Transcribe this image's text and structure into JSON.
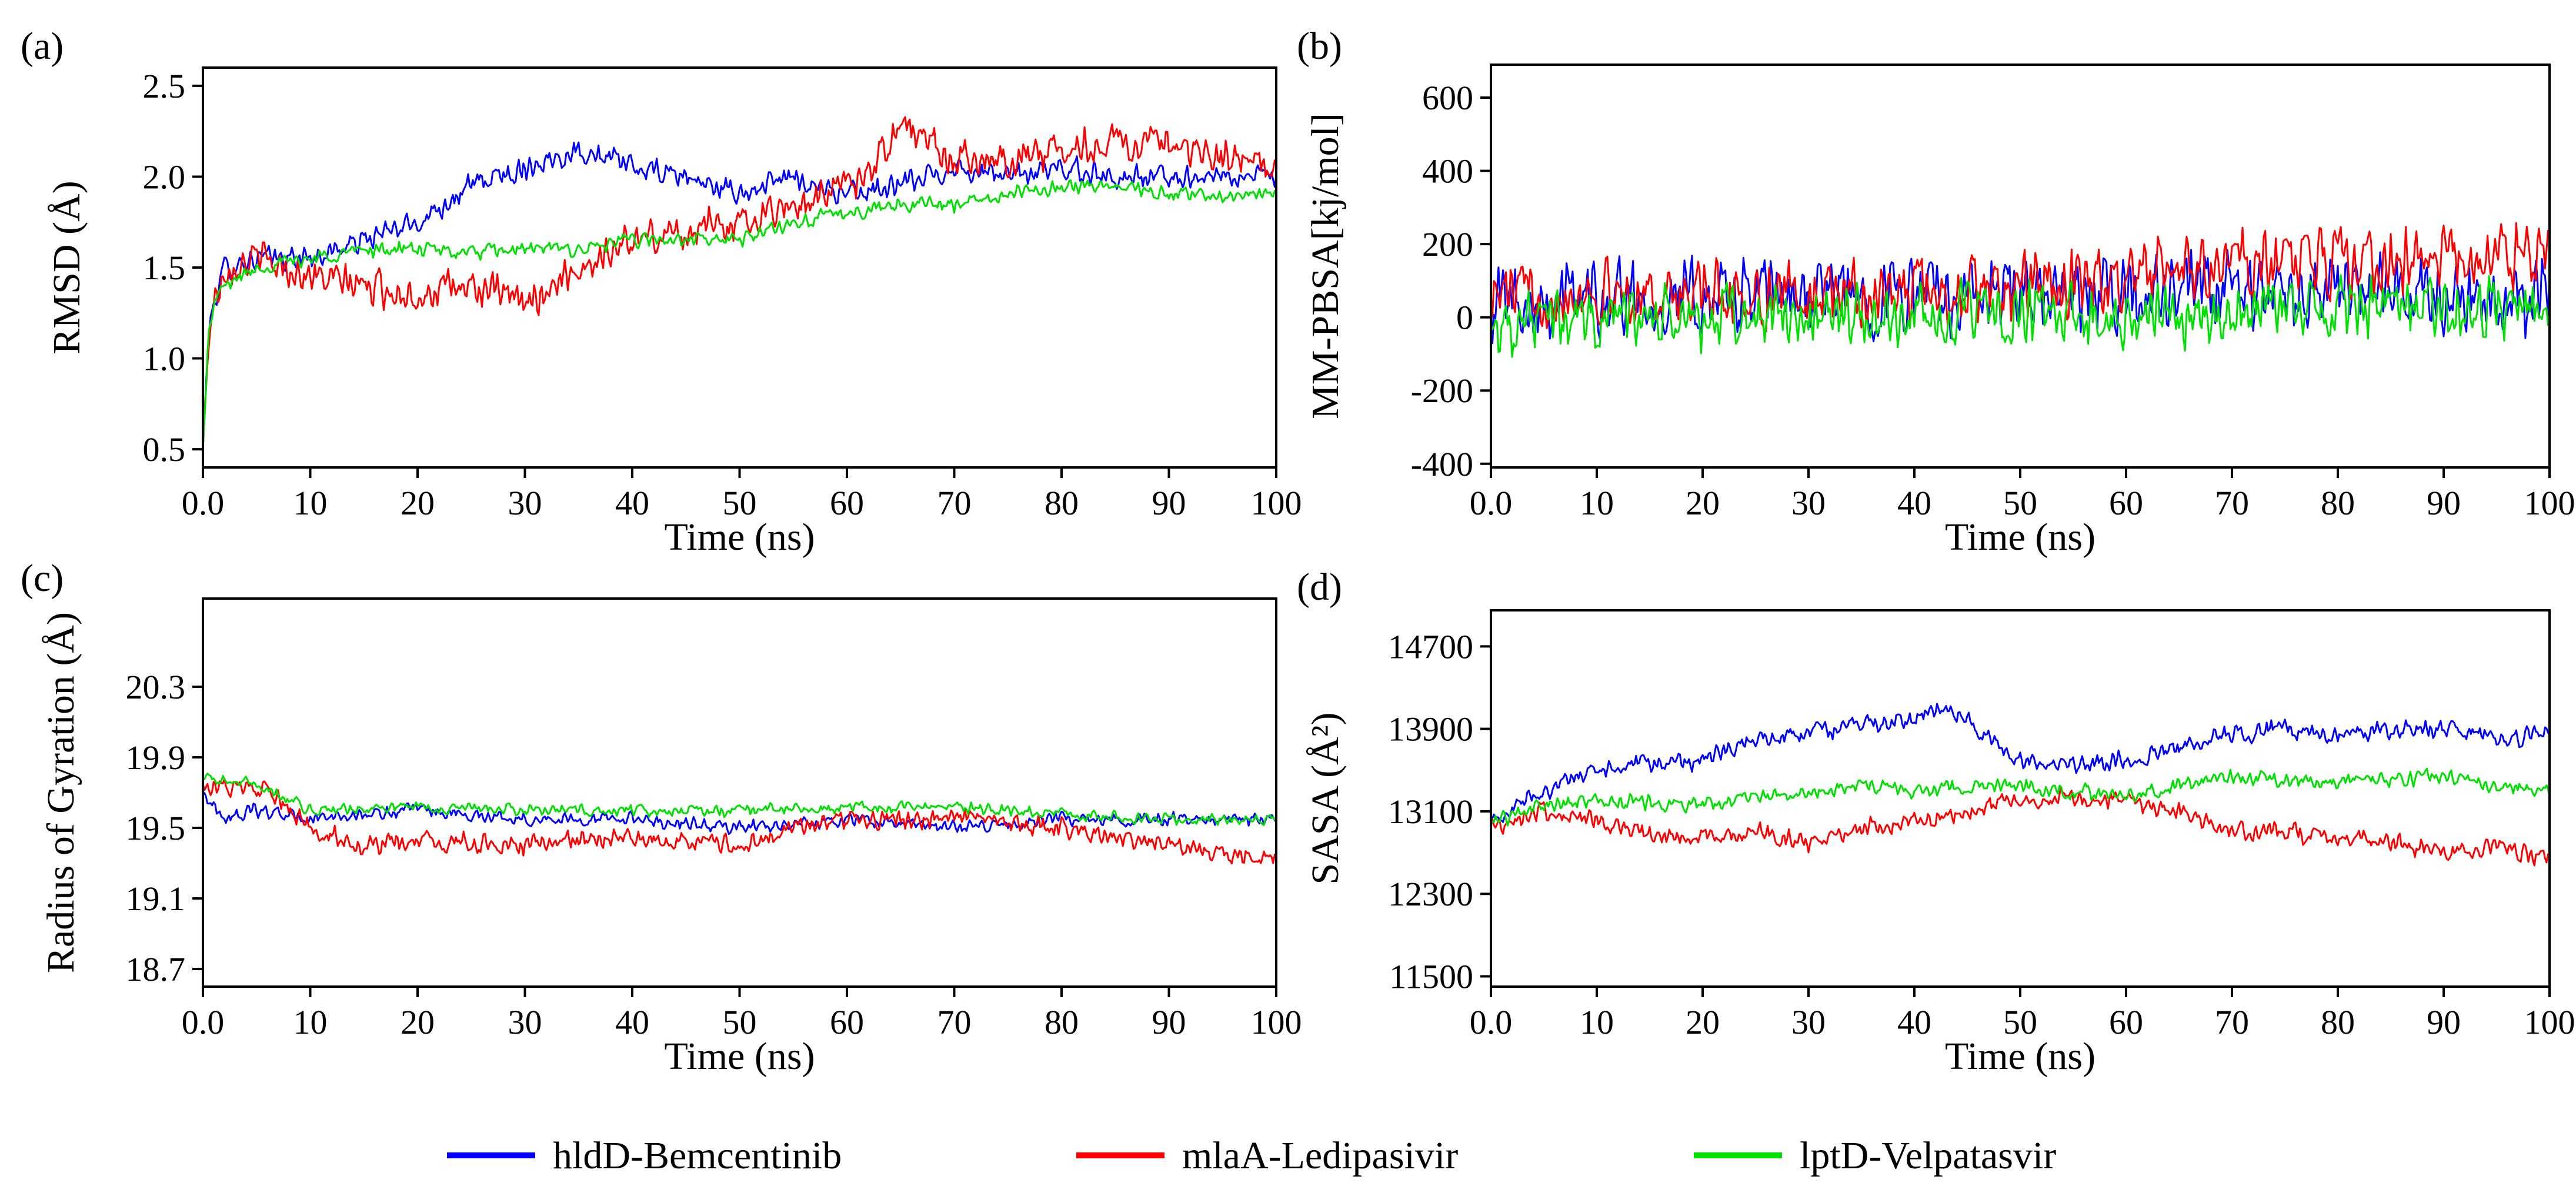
{
  "legend": [
    {
      "name": "hldD-Bemcentinib",
      "color": "#0000ff"
    },
    {
      "name": "mlaA-Ledipasivir",
      "color": "#ff0000"
    },
    {
      "name": "lptD-Velpatasvir",
      "color": "#00e000"
    }
  ],
  "chart_data": [
    {
      "id": "a",
      "panel_label": "(a)",
      "type": "line",
      "xlabel": "Time (ns)",
      "ylabel": "RMSD (Å)",
      "xlim": [
        0,
        100
      ],
      "ylim": [
        0.4,
        2.6
      ],
      "xticks": [
        0,
        10,
        20,
        30,
        40,
        50,
        60,
        70,
        80,
        90,
        100
      ],
      "xtick_labels": [
        "0.0",
        "10",
        "20",
        "30",
        "40",
        "50",
        "60",
        "70",
        "80",
        "90",
        "100"
      ],
      "yticks": [
        0.5,
        1.0,
        1.5,
        2.0,
        2.5
      ],
      "ytick_labels": [
        "0.5",
        "1.0",
        "1.5",
        "2.0",
        "2.5"
      ],
      "series": [
        {
          "name": "hldD-Bemcentinib",
          "noise": 0.08,
          "points": [
            [
              0,
              0.5
            ],
            [
              0.5,
              1.1
            ],
            [
              1,
              1.3
            ],
            [
              2,
              1.5
            ],
            [
              5,
              1.55
            ],
            [
              10,
              1.55
            ],
            [
              15,
              1.65
            ],
            [
              20,
              1.75
            ],
            [
              25,
              1.95
            ],
            [
              30,
              2.05
            ],
            [
              35,
              2.15
            ],
            [
              40,
              2.05
            ],
            [
              45,
              2.0
            ],
            [
              50,
              1.9
            ],
            [
              55,
              2.0
            ],
            [
              60,
              1.9
            ],
            [
              65,
              1.95
            ],
            [
              70,
              2.05
            ],
            [
              75,
              2.0
            ],
            [
              80,
              2.05
            ],
            [
              85,
              2.0
            ],
            [
              90,
              2.0
            ],
            [
              95,
              2.0
            ],
            [
              100,
              2.0
            ]
          ]
        },
        {
          "name": "mlaA-Ledipasivir",
          "noise": 0.12,
          "points": [
            [
              0,
              0.5
            ],
            [
              0.5,
              1.1
            ],
            [
              1,
              1.3
            ],
            [
              2,
              1.5
            ],
            [
              5,
              1.55
            ],
            [
              10,
              1.45
            ],
            [
              15,
              1.4
            ],
            [
              20,
              1.35
            ],
            [
              25,
              1.4
            ],
            [
              30,
              1.3
            ],
            [
              35,
              1.5
            ],
            [
              40,
              1.65
            ],
            [
              45,
              1.7
            ],
            [
              50,
              1.75
            ],
            [
              55,
              1.85
            ],
            [
              60,
              1.95
            ],
            [
              63,
              2.1
            ],
            [
              65,
              2.3
            ],
            [
              70,
              2.1
            ],
            [
              75,
              2.1
            ],
            [
              80,
              2.15
            ],
            [
              85,
              2.2
            ],
            [
              90,
              2.15
            ],
            [
              95,
              2.1
            ],
            [
              100,
              2.05
            ]
          ]
        },
        {
          "name": "lptD-Velpatasvir",
          "noise": 0.05,
          "points": [
            [
              0,
              0.5
            ],
            [
              0.5,
              1.1
            ],
            [
              1,
              1.3
            ],
            [
              2,
              1.4
            ],
            [
              5,
              1.5
            ],
            [
              10,
              1.55
            ],
            [
              15,
              1.6
            ],
            [
              20,
              1.6
            ],
            [
              25,
              1.58
            ],
            [
              30,
              1.6
            ],
            [
              35,
              1.6
            ],
            [
              40,
              1.65
            ],
            [
              45,
              1.65
            ],
            [
              50,
              1.65
            ],
            [
              55,
              1.75
            ],
            [
              60,
              1.8
            ],
            [
              65,
              1.85
            ],
            [
              70,
              1.85
            ],
            [
              75,
              1.9
            ],
            [
              80,
              1.95
            ],
            [
              85,
              1.95
            ],
            [
              90,
              1.9
            ],
            [
              95,
              1.9
            ],
            [
              100,
              1.9
            ]
          ]
        }
      ]
    },
    {
      "id": "b",
      "panel_label": "(b)",
      "type": "line",
      "xlabel": "Time (ns)",
      "ylabel": "MM-PBSA[kj/mol]",
      "xlim": [
        0,
        100
      ],
      "ylim": [
        -410,
        690
      ],
      "xticks": [
        0,
        10,
        20,
        30,
        40,
        50,
        60,
        70,
        80,
        90,
        100
      ],
      "xtick_labels": [
        "0.0",
        "10",
        "20",
        "30",
        "40",
        "50",
        "60",
        "70",
        "80",
        "90",
        "100"
      ],
      "yticks": [
        -400,
        -200,
        0,
        200,
        400,
        600
      ],
      "ytick_labels": [
        "-400",
        "-200",
        "0",
        "200",
        "400",
        "600"
      ],
      "series": [
        {
          "name": "hldD-Bemcentinib",
          "noise": 130,
          "points": [
            [
              0,
              50
            ],
            [
              10,
              60
            ],
            [
              20,
              50
            ],
            [
              30,
              60
            ],
            [
              40,
              60
            ],
            [
              50,
              50
            ],
            [
              60,
              60
            ],
            [
              70,
              70
            ],
            [
              80,
              70
            ],
            [
              90,
              60
            ],
            [
              100,
              60
            ]
          ]
        },
        {
          "name": "mlaA-Ledipasivir",
          "noise": 110,
          "points": [
            [
              0,
              60
            ],
            [
              10,
              70
            ],
            [
              20,
              60
            ],
            [
              30,
              60
            ],
            [
              40,
              70
            ],
            [
              50,
              80
            ],
            [
              60,
              100
            ],
            [
              70,
              150
            ],
            [
              80,
              150
            ],
            [
              90,
              160
            ],
            [
              100,
              170
            ]
          ]
        },
        {
          "name": "lptD-Velpatasvir",
          "noise": 110,
          "points": [
            [
              0,
              -20
            ],
            [
              10,
              0
            ],
            [
              20,
              -10
            ],
            [
              30,
              0
            ],
            [
              40,
              0
            ],
            [
              50,
              0
            ],
            [
              60,
              0
            ],
            [
              70,
              20
            ],
            [
              80,
              20
            ],
            [
              90,
              20
            ],
            [
              100,
              20
            ]
          ]
        }
      ]
    },
    {
      "id": "c",
      "panel_label": "(c)",
      "type": "line",
      "xlabel": "Time (ns)",
      "ylabel": "Radius of Gyration (Å)",
      "xlim": [
        0,
        100
      ],
      "ylim": [
        18.6,
        20.8
      ],
      "xticks": [
        0,
        10,
        20,
        30,
        40,
        50,
        60,
        70,
        80,
        90,
        100
      ],
      "xtick_labels": [
        "0.0",
        "10",
        "20",
        "30",
        "40",
        "50",
        "60",
        "70",
        "80",
        "90",
        "100"
      ],
      "yticks": [
        18.7,
        19.1,
        19.5,
        19.9,
        20.3
      ],
      "ytick_labels": [
        "18.7",
        "19.1",
        "19.5",
        "19.9",
        "20.3"
      ],
      "series": [
        {
          "name": "hldD-Bemcentinib",
          "noise": 0.045,
          "points": [
            [
              0,
              19.7
            ],
            [
              2,
              19.55
            ],
            [
              5,
              19.6
            ],
            [
              10,
              19.55
            ],
            [
              20,
              19.6
            ],
            [
              30,
              19.55
            ],
            [
              40,
              19.55
            ],
            [
              50,
              19.5
            ],
            [
              60,
              19.55
            ],
            [
              70,
              19.5
            ],
            [
              80,
              19.55
            ],
            [
              90,
              19.55
            ],
            [
              100,
              19.55
            ]
          ]
        },
        {
          "name": "mlaA-Ledipasivir",
          "noise": 0.07,
          "points": [
            [
              0,
              19.75
            ],
            [
              3,
              19.72
            ],
            [
              6,
              19.7
            ],
            [
              10,
              19.5
            ],
            [
              15,
              19.4
            ],
            [
              20,
              19.42
            ],
            [
              30,
              19.4
            ],
            [
              40,
              19.45
            ],
            [
              50,
              19.4
            ],
            [
              55,
              19.5
            ],
            [
              60,
              19.55
            ],
            [
              70,
              19.55
            ],
            [
              80,
              19.5
            ],
            [
              90,
              19.4
            ],
            [
              95,
              19.35
            ],
            [
              100,
              19.35
            ]
          ]
        },
        {
          "name": "lptD-Velpatasvir",
          "noise": 0.04,
          "points": [
            [
              0,
              19.78
            ],
            [
              5,
              19.75
            ],
            [
              10,
              19.6
            ],
            [
              20,
              19.62
            ],
            [
              30,
              19.6
            ],
            [
              40,
              19.6
            ],
            [
              50,
              19.6
            ],
            [
              60,
              19.62
            ],
            [
              70,
              19.62
            ],
            [
              80,
              19.58
            ],
            [
              90,
              19.55
            ],
            [
              100,
              19.55
            ]
          ]
        }
      ]
    },
    {
      "id": "d",
      "panel_label": "(d)",
      "type": "line",
      "xlabel": "Time (ns)",
      "ylabel": "SASA (Å²)",
      "xlim": [
        0,
        100
      ],
      "ylim": [
        11400,
        15050
      ],
      "xticks": [
        0,
        10,
        20,
        30,
        40,
        50,
        60,
        70,
        80,
        90,
        100
      ],
      "xtick_labels": [
        "0.0",
        "10",
        "20",
        "30",
        "40",
        "50",
        "60",
        "70",
        "80",
        "90",
        "100"
      ],
      "yticks": [
        11500,
        12300,
        13100,
        13900,
        14700
      ],
      "ytick_labels": [
        "11500",
        "12300",
        "13100",
        "13900",
        "14700"
      ],
      "series": [
        {
          "name": "hldD-Bemcentinib",
          "noise": 110,
          "points": [
            [
              0,
              13000
            ],
            [
              5,
              13300
            ],
            [
              10,
              13500
            ],
            [
              20,
              13600
            ],
            [
              25,
              13800
            ],
            [
              30,
              13850
            ],
            [
              35,
              13950
            ],
            [
              40,
              14000
            ],
            [
              43,
              14150
            ],
            [
              47,
              13800
            ],
            [
              50,
              13600
            ],
            [
              55,
              13550
            ],
            [
              60,
              13600
            ],
            [
              65,
              13700
            ],
            [
              70,
              13850
            ],
            [
              75,
              13900
            ],
            [
              80,
              13850
            ],
            [
              85,
              13900
            ],
            [
              90,
              13900
            ],
            [
              95,
              13800
            ],
            [
              100,
              13850
            ]
          ]
        },
        {
          "name": "mlaA-Ledipasivir",
          "noise": 110,
          "points": [
            [
              0,
              12950
            ],
            [
              5,
              13100
            ],
            [
              10,
              13000
            ],
            [
              15,
              12850
            ],
            [
              20,
              12850
            ],
            [
              25,
              12900
            ],
            [
              30,
              12800
            ],
            [
              35,
              12950
            ],
            [
              40,
              13000
            ],
            [
              45,
              13100
            ],
            [
              50,
              13200
            ],
            [
              55,
              13250
            ],
            [
              60,
              13200
            ],
            [
              65,
              13100
            ],
            [
              70,
              12900
            ],
            [
              75,
              12900
            ],
            [
              80,
              12850
            ],
            [
              85,
              12800
            ],
            [
              90,
              12700
            ],
            [
              95,
              12750
            ],
            [
              100,
              12650
            ]
          ]
        },
        {
          "name": "lptD-Velpatasvir",
          "noise": 90,
          "points": [
            [
              0,
              13000
            ],
            [
              5,
              13150
            ],
            [
              10,
              13200
            ],
            [
              20,
              13150
            ],
            [
              25,
              13250
            ],
            [
              30,
              13300
            ],
            [
              35,
              13350
            ],
            [
              40,
              13300
            ],
            [
              45,
              13350
            ],
            [
              50,
              13350
            ],
            [
              55,
              13300
            ],
            [
              60,
              13250
            ],
            [
              65,
              13350
            ],
            [
              70,
              13450
            ],
            [
              75,
              13400
            ],
            [
              80,
              13400
            ],
            [
              85,
              13400
            ],
            [
              90,
              13450
            ],
            [
              95,
              13350
            ],
            [
              100,
              13300
            ]
          ]
        }
      ]
    }
  ]
}
